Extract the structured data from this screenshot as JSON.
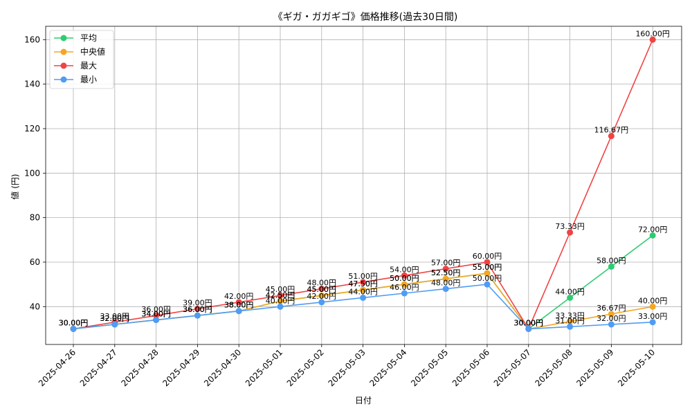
{
  "chart_data": {
    "type": "line",
    "title": "《ギガ・ガガギゴ》価格推移(過去30日間)",
    "xlabel": "日付",
    "ylabel": "値 (円)",
    "label_suffix": "円",
    "ylim": [
      23,
      166
    ],
    "yticks": [
      40,
      60,
      80,
      100,
      120,
      140,
      160
    ],
    "grid": true,
    "legend_position": "top-left",
    "categories": [
      "2025-04-26",
      "2025-04-27",
      "2025-04-28",
      "2025-04-29",
      "2025-04-30",
      "2025-05-01",
      "2025-05-02",
      "2025-05-03",
      "2025-05-04",
      "2025-05-05",
      "2025-05-06",
      "2025-05-07",
      "2025-05-08",
      "2025-05-09",
      "2025-05-10"
    ],
    "series": [
      {
        "name": "平均",
        "color": "#2ecc71",
        "values": [
          30,
          32,
          34,
          36,
          38,
          42.5,
          45,
          47.5,
          50,
          52.5,
          55,
          30,
          44,
          58,
          72
        ]
      },
      {
        "name": "中央値",
        "color": "#f5a623",
        "values": [
          30,
          32,
          34,
          36,
          38,
          42.5,
          45,
          47.5,
          50,
          52.5,
          55,
          30,
          33.33,
          36.67,
          40
        ]
      },
      {
        "name": "最大",
        "color": "#ef4444",
        "values": [
          30,
          33,
          36,
          39,
          42,
          45,
          48,
          51,
          54,
          57,
          60,
          30,
          73.33,
          116.67,
          160
        ]
      },
      {
        "name": "最小",
        "color": "#4f9cf5",
        "values": [
          30,
          32,
          34,
          36,
          38,
          40,
          42,
          44,
          46,
          48,
          50,
          30,
          31,
          32,
          33
        ]
      }
    ]
  }
}
